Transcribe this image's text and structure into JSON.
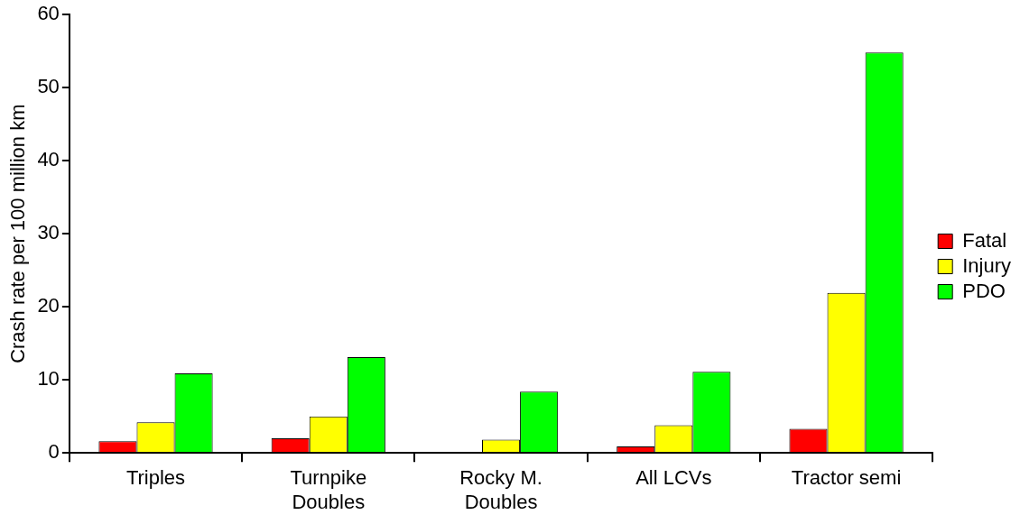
{
  "chart_data": {
    "type": "bar",
    "ylabel": "Crash rate per 100 million km",
    "categories": [
      "Triples",
      "Turnpike\nDoubles",
      "Rocky M.\nDoubles",
      "All LCVs",
      "Tractor semi"
    ],
    "series": [
      {
        "name": "Fatal",
        "color": "#ff0000",
        "values": [
          1.6,
          2.0,
          0,
          0.9,
          3.3
        ]
      },
      {
        "name": "Injury",
        "color": "#ffff00",
        "values": [
          4.2,
          5.0,
          1.8,
          3.8,
          21.9
        ]
      },
      {
        "name": "PDO",
        "color": "#00ff00",
        "values": [
          10.9,
          13.1,
          8.4,
          11.1,
          54.8
        ]
      }
    ],
    "ylim": [
      0,
      60
    ],
    "yticks": [
      0,
      10,
      20,
      30,
      40,
      50,
      60
    ],
    "grid": false,
    "legend": "right"
  }
}
